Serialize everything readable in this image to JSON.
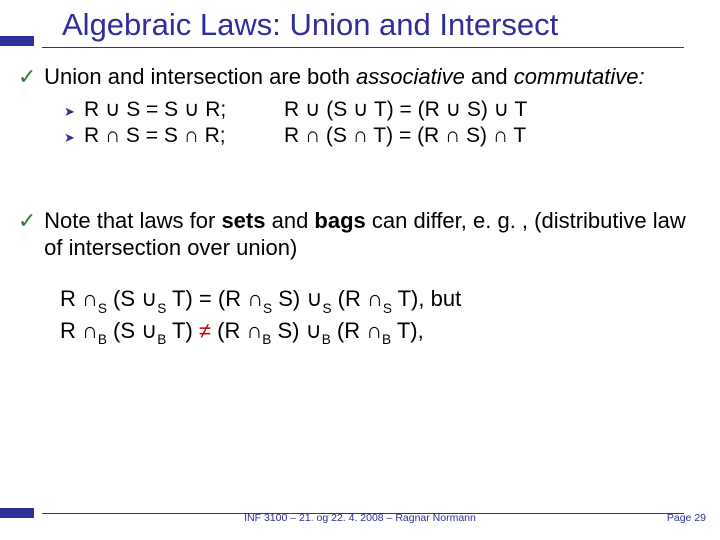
{
  "colors": {
    "accent": "#2f2f99",
    "check": "#2e7d32",
    "subbullet": "#2f2f99",
    "rule": "#2f2f99",
    "neq": "#c00000",
    "text": "#000000"
  },
  "title": "Algebraic Laws: Union and Intersect",
  "point1": {
    "prefix": "Union and intersection are both ",
    "em1": "associative",
    "mid": " and ",
    "em2": "commutative:"
  },
  "sub": {
    "row1_left": "R ∪ S = S ∪ R;",
    "row1_right": "R ∪ (S ∪ T) = (R ∪ S) ∪ T",
    "row2_left": "R ∩ S = S ∩ R;",
    "row2_right": "R ∩ (S ∩ T) = (R ∩ S) ∩ T"
  },
  "point2": {
    "prefix": "Note that laws for ",
    "b1": "sets",
    "mid1": " and ",
    "b2": "bags",
    "rest": " can differ, e. g. , (distributive law of intersection over union)"
  },
  "eqs": {
    "line1": {
      "p1": "R ∩",
      "s1": "S",
      "p2": " (S ∪",
      "s2": "S",
      "p3": " T) = (R ∩",
      "s3": "S",
      "p4": " S) ∪",
      "s4": "S",
      "p5": " (R ∩",
      "s5": "S",
      "p6": " T), but"
    },
    "line2": {
      "p1": "R ∩",
      "s1": "B",
      "p2": " (S ∪",
      "s2": "B",
      "p3": " T) ",
      "neq": "≠",
      "p4": " (R ∩",
      "s4": "B",
      "p5": " S) ∪",
      "s5": "B",
      "p6": " (R ∩",
      "s6": "B",
      "p7": " T),"
    }
  },
  "footer": {
    "center": "INF 3100 – 21. og 22. 4. 2008 – Ragnar Normann",
    "right": "Page 29"
  },
  "glyphs": {
    "check": "✓",
    "chevron": "➤"
  }
}
